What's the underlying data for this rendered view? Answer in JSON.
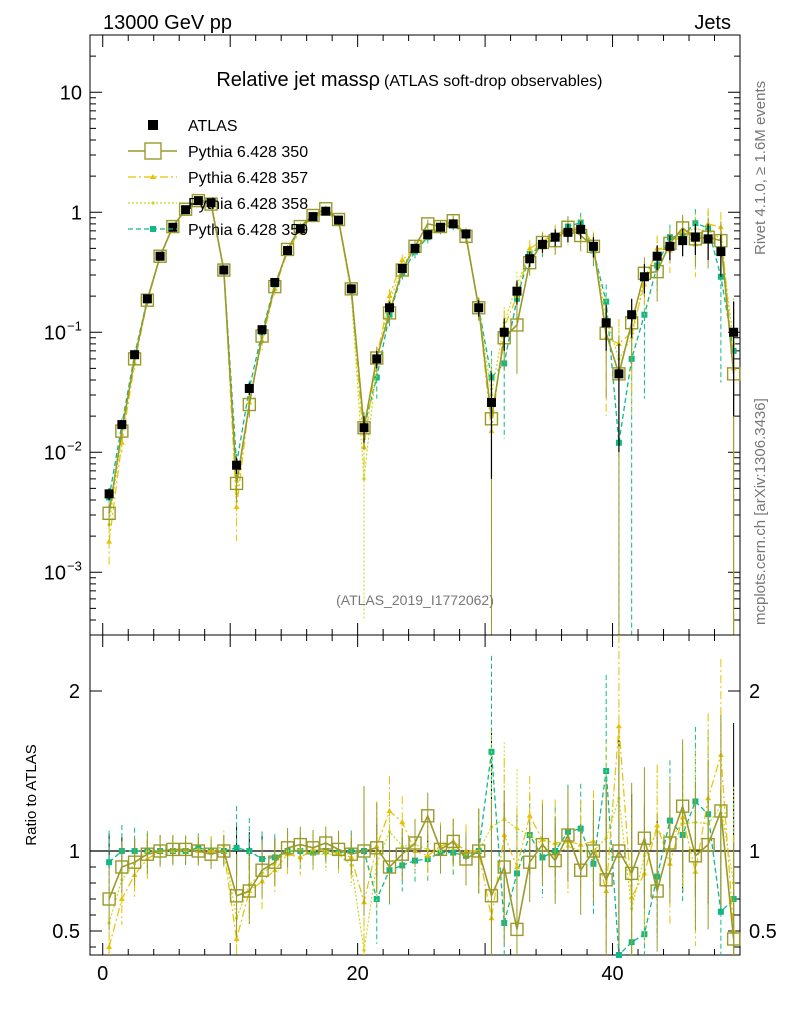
{
  "header": {
    "left": "13000 GeV pp",
    "right": "Jets"
  },
  "side_labels": {
    "rivet": "Rivet 4.1.0, ≥ 1.6M events",
    "mcplots": "mcplots.cern.ch [arXiv:1306.3436]"
  },
  "colors": {
    "atlas": "#000000",
    "py350": "#9a9a2a",
    "py357": "#e6c200",
    "py358": "#c8d820",
    "py359": "#10b888"
  },
  "chart_data": [
    {
      "type": "scatter",
      "title": "Relative jet massρ",
      "subtitle": "(ATLAS soft-drop observables)",
      "watermark": "(ATLAS_2019_I1772062)",
      "yscale": "log",
      "ylim": [
        0.0003,
        30
      ],
      "xlim": [
        -1,
        50
      ],
      "y_ticks": [
        {
          "value": 10,
          "base": "10",
          "exp": ""
        },
        {
          "value": 1,
          "base": "1",
          "exp": ""
        },
        {
          "value": 0.1,
          "base": "10",
          "exp": "−1"
        },
        {
          "value": 0.01,
          "base": "10",
          "exp": "−2"
        },
        {
          "value": 0.001,
          "base": "10",
          "exp": "−3"
        }
      ],
      "legend": [
        {
          "name": "ATLAS",
          "style": "atlas"
        },
        {
          "name": "Pythia 6.428 350",
          "style": "py350"
        },
        {
          "name": "Pythia 6.428 357",
          "style": "py357"
        },
        {
          "name": "Pythia 6.428 358",
          "style": "py358"
        },
        {
          "name": "Pythia 6.428 359",
          "style": "py359"
        }
      ],
      "x": [
        0.5,
        1.5,
        2.5,
        3.5,
        4.5,
        5.5,
        6.5,
        7.5,
        8.5,
        9.5,
        10.5,
        11.5,
        12.5,
        13.5,
        14.5,
        15.5,
        16.5,
        17.5,
        18.5,
        19.5,
        20.5,
        21.5,
        22.5,
        23.5,
        24.5,
        25.5,
        26.5,
        27.5,
        28.5,
        29.5,
        30.5,
        31.5,
        32.5,
        33.5,
        34.5,
        35.5,
        36.5,
        37.5,
        38.5,
        39.5,
        40.5,
        41.5,
        42.5,
        43.5,
        44.5,
        45.5,
        46.5,
        47.5,
        48.5,
        49.5
      ],
      "series": [
        {
          "name": "ATLAS",
          "values": [
            0.0045,
            0.017,
            0.065,
            0.19,
            0.43,
            0.75,
            1.05,
            1.25,
            1.2,
            0.33,
            0.0078,
            0.034,
            0.105,
            0.26,
            0.48,
            0.73,
            0.92,
            1.02,
            0.86,
            0.23,
            0.016,
            0.06,
            0.16,
            0.34,
            0.5,
            0.65,
            0.75,
            0.8,
            0.66,
            0.16,
            0.026,
            0.1,
            0.22,
            0.41,
            0.54,
            0.62,
            0.68,
            0.72,
            0.52,
            0.12,
            0.045,
            0.14,
            0.29,
            0.43,
            0.52,
            0.58,
            0.62,
            0.6,
            0.47,
            0.1
          ]
        },
        {
          "name": "Pythia 6.428 350",
          "values": [
            0.0031,
            0.015,
            0.06,
            0.185,
            0.43,
            0.76,
            1.06,
            1.25,
            1.17,
            0.33,
            0.0055,
            0.025,
            0.093,
            0.24,
            0.49,
            0.76,
            0.94,
            1.07,
            0.87,
            0.23,
            0.016,
            0.061,
            0.145,
            0.33,
            0.52,
            0.8,
            0.76,
            0.85,
            0.63,
            0.16,
            0.019,
            0.09,
            0.115,
            0.38,
            0.56,
            0.58,
            0.75,
            0.64,
            0.52,
            0.098,
            0.045,
            0.12,
            0.31,
            0.32,
            0.55,
            0.74,
            0.6,
            0.62,
            0.58,
            0.045
          ]
        },
        {
          "name": "Pythia 6.428 357",
          "values": [
            0.0018,
            0.012,
            0.055,
            0.18,
            0.43,
            0.75,
            1.06,
            1.25,
            1.2,
            0.33,
            0.0035,
            0.026,
            0.085,
            0.23,
            0.47,
            0.7,
            0.93,
            1.02,
            0.85,
            0.22,
            0.011,
            0.062,
            0.2,
            0.4,
            0.5,
            0.63,
            0.77,
            0.85,
            0.66,
            0.16,
            0.015,
            0.11,
            0.2,
            0.5,
            0.58,
            0.65,
            0.72,
            0.75,
            0.55,
            0.09,
            0.08,
            0.1,
            0.25,
            0.5,
            0.48,
            0.7,
            0.54,
            0.8,
            0.75,
            0.05
          ]
        },
        {
          "name": "Pythia 6.428 358",
          "values": [
            0.0025,
            0.014,
            0.06,
            0.19,
            0.43,
            0.76,
            1.05,
            1.26,
            1.2,
            0.34,
            0.0045,
            0.027,
            0.09,
            0.24,
            0.48,
            0.74,
            0.9,
            1.0,
            0.84,
            0.21,
            0.006,
            0.055,
            0.18,
            0.35,
            0.52,
            0.66,
            0.75,
            0.82,
            0.65,
            0.16,
            0.03,
            0.12,
            0.25,
            0.45,
            0.56,
            0.6,
            0.7,
            0.72,
            0.52,
            0.13,
            0.06,
            0.09,
            0.28,
            0.48,
            0.56,
            0.68,
            0.73,
            0.7,
            0.6,
            0.08
          ]
        },
        {
          "name": "Pythia 6.428 359",
          "values": [
            0.0042,
            0.017,
            0.065,
            0.19,
            0.43,
            0.75,
            1.05,
            1.27,
            1.2,
            0.33,
            0.008,
            0.034,
            0.1,
            0.25,
            0.48,
            0.73,
            0.91,
            1.02,
            0.85,
            0.23,
            0.016,
            0.042,
            0.14,
            0.31,
            0.47,
            0.62,
            0.74,
            0.79,
            0.64,
            0.16,
            0.042,
            0.055,
            0.19,
            0.45,
            0.52,
            0.62,
            0.76,
            0.82,
            0.48,
            0.18,
            0.012,
            0.06,
            0.14,
            0.36,
            0.62,
            0.64,
            0.81,
            0.74,
            0.29,
            0.07
          ]
        }
      ],
      "error_bars": [
        0.0005,
        0.0015,
        0.005,
        0.012,
        0.02,
        0.03,
        0.04,
        0.05,
        0.05,
        0.015,
        0.0012,
        0.004,
        0.01,
        0.02,
        0.03,
        0.04,
        0.05,
        0.05,
        0.05,
        0.015,
        0.004,
        0.01,
        0.02,
        0.03,
        0.04,
        0.05,
        0.06,
        0.06,
        0.06,
        0.025,
        0.02,
        0.03,
        0.05,
        0.06,
        0.08,
        0.1,
        0.12,
        0.12,
        0.1,
        0.05,
        0.035,
        0.05,
        0.08,
        0.1,
        0.12,
        0.15,
        0.18,
        0.2,
        0.18,
        0.08
      ]
    },
    {
      "type": "line",
      "ylabel": "Ratio to ATLAS",
      "ylim": [
        0.35,
        2.35
      ],
      "xlim": [
        -1,
        50
      ],
      "y_ticks": [
        {
          "value": 0.5,
          "label": "0.5"
        },
        {
          "value": 1,
          "label": "1"
        },
        {
          "value": 2,
          "label": "2"
        }
      ],
      "x_ticks": [
        {
          "value": 0,
          "label": "0"
        },
        {
          "value": 20,
          "label": "20"
        },
        {
          "value": 40,
          "label": "40"
        }
      ],
      "x": [
        0.5,
        1.5,
        2.5,
        3.5,
        4.5,
        5.5,
        6.5,
        7.5,
        8.5,
        9.5,
        10.5,
        11.5,
        12.5,
        13.5,
        14.5,
        15.5,
        16.5,
        17.5,
        18.5,
        19.5,
        20.5,
        21.5,
        22.5,
        23.5,
        24.5,
        25.5,
        26.5,
        27.5,
        28.5,
        29.5,
        30.5,
        31.5,
        32.5,
        33.5,
        34.5,
        35.5,
        36.5,
        37.5,
        38.5,
        39.5,
        40.5,
        41.5,
        42.5,
        43.5,
        44.5,
        45.5,
        46.5,
        47.5,
        48.5,
        49.5
      ],
      "series": [
        {
          "name": "Pythia 6.428 350",
          "values": [
            0.7,
            0.9,
            0.93,
            0.98,
            1.0,
            1.01,
            1.01,
            1.0,
            0.98,
            1.0,
            0.72,
            0.75,
            0.88,
            0.93,
            1.02,
            1.04,
            1.02,
            1.05,
            1.01,
            0.98,
            1.0,
            1.02,
            0.9,
            0.98,
            1.05,
            1.22,
            1.01,
            1.06,
            0.95,
            1.0,
            0.72,
            0.9,
            0.51,
            0.93,
            1.04,
            0.94,
            1.1,
            0.88,
            1.0,
            0.82,
            1.0,
            0.86,
            1.08,
            0.75,
            1.05,
            1.28,
            0.97,
            1.04,
            1.25,
            0.45
          ]
        },
        {
          "name": "Pythia 6.428 357",
          "values": [
            0.4,
            0.7,
            0.85,
            0.95,
            1.0,
            1.0,
            1.01,
            1.0,
            1.0,
            1.0,
            0.45,
            0.75,
            0.81,
            0.88,
            0.98,
            0.96,
            1.01,
            1.0,
            0.99,
            0.96,
            0.68,
            1.03,
            1.25,
            1.18,
            1.0,
            0.97,
            1.03,
            1.06,
            1.0,
            1.0,
            0.58,
            1.1,
            0.9,
            1.22,
            1.07,
            1.05,
            1.06,
            1.04,
            1.06,
            0.75,
            1.78,
            0.71,
            0.86,
            1.16,
            0.92,
            1.21,
            0.87,
            1.33,
            1.6,
            0.5
          ]
        },
        {
          "name": "Pythia 6.428 358",
          "values": [
            0.55,
            0.82,
            0.92,
            1.0,
            1.0,
            1.01,
            1.0,
            1.01,
            1.0,
            1.03,
            0.58,
            0.79,
            0.86,
            0.92,
            1.0,
            1.01,
            0.98,
            0.98,
            0.98,
            0.91,
            0.38,
            0.92,
            1.12,
            1.03,
            1.04,
            1.01,
            1.0,
            1.02,
            0.98,
            1.0,
            1.15,
            1.2,
            1.14,
            1.1,
            1.04,
            0.97,
            1.03,
            1.0,
            1.0,
            1.08,
            1.33,
            0.64,
            0.97,
            1.12,
            1.08,
            1.17,
            1.18,
            1.17,
            1.28,
            0.8
          ]
        },
        {
          "name": "Pythia 6.428 359",
          "values": [
            0.93,
            1.0,
            1.0,
            1.0,
            1.0,
            1.0,
            1.0,
            1.02,
            1.0,
            1.0,
            1.02,
            1.0,
            0.95,
            0.96,
            1.0,
            1.0,
            0.99,
            1.0,
            0.99,
            1.0,
            1.0,
            0.7,
            0.88,
            0.91,
            0.94,
            0.95,
            0.99,
            0.99,
            0.97,
            1.0,
            1.62,
            0.55,
            0.86,
            1.1,
            0.96,
            1.0,
            1.12,
            1.14,
            0.92,
            1.5,
            0.27,
            0.43,
            0.48,
            0.84,
            1.19,
            1.1,
            1.31,
            1.23,
            0.62,
            0.7
          ]
        }
      ]
    }
  ]
}
